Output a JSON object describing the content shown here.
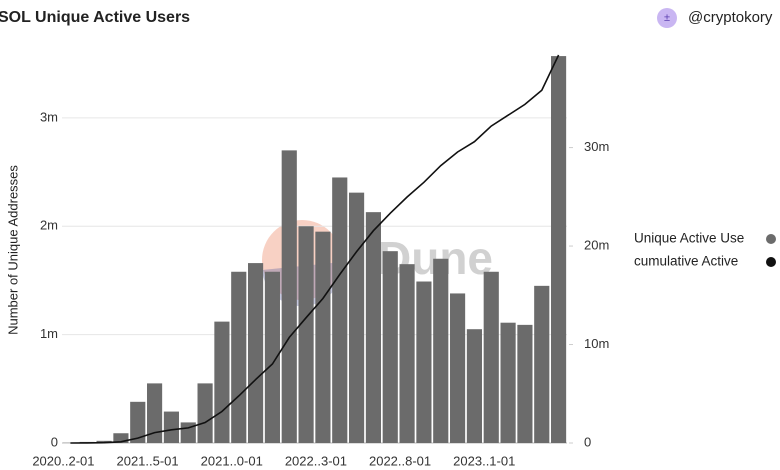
{
  "chart_data": {
    "type": "bar_line",
    "title": "SOL Unique Active Users",
    "author": "@cryptokory",
    "watermark": "Dune",
    "y_label": "Number of Unique Addresses",
    "categories": [
      "2020..2-01",
      null,
      null,
      null,
      null,
      "2021..5-01",
      null,
      null,
      null,
      null,
      "2021..0-01",
      null,
      null,
      null,
      null,
      "2022..3-01",
      null,
      null,
      null,
      null,
      "2022..8-01",
      null,
      null,
      null,
      null,
      "2023..1-01",
      null,
      null,
      null,
      null
    ],
    "series": [
      {
        "name": "Unique Active Use",
        "color": "#6b6b6b",
        "type": "bar",
        "values": [
          2000,
          10000,
          20000,
          90000,
          380000,
          550000,
          290000,
          190000,
          550000,
          1120000,
          1580000,
          1660000,
          1580000,
          2700000,
          2000000,
          1950000,
          2450000,
          2310000,
          2130000,
          1770000,
          1650000,
          1490000,
          1700000,
          1380000,
          1050000,
          1580000,
          1110000,
          1090000,
          1450000,
          3570000
        ]
      },
      {
        "name": "cumulative Active",
        "color": "#111111",
        "type": "line",
        "axis": "y2",
        "values": [
          2000,
          12000,
          32000,
          122000,
          502000,
          1052000,
          1342000,
          1532000,
          2082000,
          3202000,
          4782000,
          6442000,
          8022000,
          10722000,
          12722000,
          14672000,
          17122000,
          19432000,
          21562000,
          23332000,
          24982000,
          26472000,
          28172000,
          29552000,
          30602000,
          32182000,
          33292000,
          34382000,
          35832000,
          39402000
        ]
      }
    ],
    "ylim": [
      0,
      3580000
    ],
    "yticks": [
      0,
      {
        "value": 1000000,
        "label": "1m"
      },
      {
        "value": 2000000,
        "label": "2m"
      },
      {
        "value": 3000000,
        "label": "3m"
      }
    ],
    "y2lim": [
      0,
      39402000
    ],
    "y2ticks": [
      0,
      {
        "value": 10000000,
        "label": "10m"
      },
      {
        "value": 20000000,
        "label": "20m"
      },
      {
        "value": 30000000,
        "label": "30m"
      }
    ],
    "grid": true
  }
}
